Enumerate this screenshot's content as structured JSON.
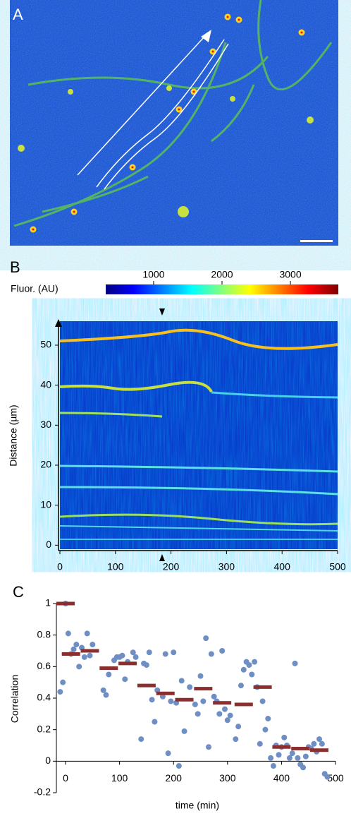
{
  "chart_data": [
    {
      "type": "image",
      "label": "A"
    },
    {
      "type": "heatmap",
      "label": "B",
      "colorbar_label": "Fluor. (AU)",
      "clim": [
        300,
        3700
      ],
      "cticks": [
        1000,
        2000,
        3000
      ],
      "ylabel": "Distance (µm)",
      "xlim": [
        0,
        500
      ],
      "xticks": [
        0,
        100,
        200,
        300,
        400,
        500
      ],
      "ylim": [
        -1,
        56
      ],
      "yticks": [
        0,
        10,
        20,
        30,
        40,
        50
      ]
    },
    {
      "type": "scatter",
      "label": "C",
      "xlabel": "time (min)",
      "ylabel": "Correlation",
      "xlim": [
        -17,
        500
      ],
      "xticks": [
        0,
        100,
        200,
        300,
        400,
        500
      ],
      "ylim": [
        -0.2,
        1
      ],
      "yticks": [
        -0.2,
        0,
        0.2,
        0.4,
        0.6,
        0.8,
        1
      ],
      "series": [
        {
          "color": "#6f8fc4",
          "marker": "dot",
          "x": [
            0,
            -10,
            -5,
            5,
            10,
            15,
            20,
            25,
            30,
            35,
            40,
            45,
            50,
            70,
            75,
            80,
            90,
            95,
            100,
            105,
            110,
            115,
            125,
            130,
            140,
            145,
            150,
            155,
            160,
            165,
            170,
            180,
            185,
            190,
            195,
            200,
            205,
            210,
            215,
            220,
            230,
            240,
            245,
            250,
            255,
            260,
            265,
            270,
            275,
            280,
            285,
            290,
            295,
            300,
            305,
            315,
            320,
            325,
            330,
            335,
            340,
            345,
            350,
            355,
            360,
            365,
            370,
            375,
            380,
            385,
            390,
            395,
            400,
            405,
            410,
            415,
            420,
            425,
            430,
            435,
            440,
            445,
            450,
            455,
            460,
            465,
            470,
            475,
            480,
            485
          ],
          "values": [
            1.0,
            0.44,
            0.5,
            0.81,
            0.68,
            0.71,
            0.74,
            0.6,
            0.72,
            0.66,
            0.81,
            0.67,
            0.74,
            0.45,
            0.42,
            0.55,
            0.64,
            0.66,
            0.66,
            0.67,
            0.52,
            0.63,
            0.69,
            0.66,
            0.14,
            0.62,
            0.61,
            0.69,
            0.39,
            0.25,
            0.45,
            0.41,
            0.68,
            0.05,
            0.38,
            0.69,
            0.37,
            -0.03,
            0.51,
            0.19,
            0.47,
            0.36,
            0.3,
            0.54,
            0.38,
            0.78,
            0.09,
            0.68,
            0.41,
            0.38,
            0.3,
            0.7,
            0.33,
            0.26,
            0.29,
            0.14,
            0.22,
            0.48,
            0.58,
            0.63,
            0.61,
            0.55,
            0.63,
            0.47,
            0.11,
            0.38,
            0.2,
            0.27,
            0.02,
            -0.03,
            0.1,
            0.04,
            0.09,
            0.15,
            0.1,
            0.02,
            0.05,
            0.62,
            0.02,
            -0.02,
            -0.04,
            0.03,
            0.09,
            0.08,
            0.11,
            0.06,
            0.14,
            0.11,
            -0.08,
            -0.1
          ]
        },
        {
          "color": "#8b2e2e",
          "marker": "dash",
          "x": [
            0,
            10,
            45,
            80,
            115,
            150,
            185,
            220,
            255,
            290,
            330,
            365,
            400,
            435,
            470
          ],
          "values": [
            1.0,
            0.68,
            0.7,
            0.59,
            0.62,
            0.48,
            0.43,
            0.39,
            0.46,
            0.37,
            0.36,
            0.47,
            0.09,
            0.08,
            0.07
          ]
        }
      ]
    }
  ]
}
